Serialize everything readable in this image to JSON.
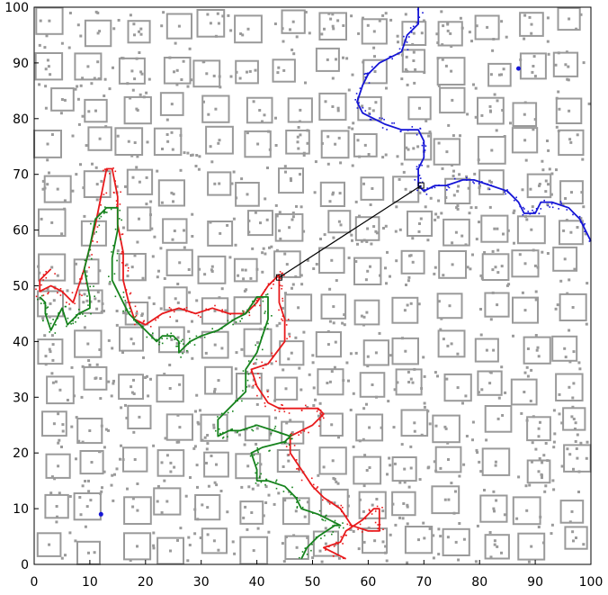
{
  "chart_data": {
    "type": "line",
    "title": "",
    "xlabel": "",
    "ylabel": "",
    "xlim": [
      0,
      100
    ],
    "ylim": [
      0,
      100
    ],
    "grid": false,
    "xticks": [
      0,
      10,
      20,
      30,
      40,
      50,
      60,
      70,
      80,
      90,
      100
    ],
    "yticks": [
      0,
      10,
      20,
      30,
      40,
      50,
      60,
      70,
      80,
      90,
      100
    ],
    "colors": {
      "red": "#e8191b",
      "green": "#15821c",
      "blue": "#1515d6",
      "link": "#000000",
      "obstacle": "#9a9a9a"
    },
    "series": [
      {
        "color": "red",
        "points": [
          [
            56,
            1
          ],
          [
            52,
            3
          ],
          [
            55,
            4
          ],
          [
            56,
            6
          ],
          [
            59,
            8
          ],
          [
            61,
            10
          ],
          [
            62,
            10
          ],
          [
            62,
            6
          ],
          [
            60,
            6
          ],
          [
            57,
            7
          ],
          [
            55,
            10
          ],
          [
            52,
            12
          ],
          [
            50,
            14
          ],
          [
            48,
            17
          ],
          [
            46,
            20
          ],
          [
            46,
            23
          ],
          [
            50,
            25
          ],
          [
            52,
            27
          ],
          [
            51,
            28
          ],
          [
            47,
            28
          ],
          [
            44,
            28
          ],
          [
            42,
            29
          ],
          [
            40,
            32
          ],
          [
            39,
            35
          ],
          [
            42,
            36
          ],
          [
            45,
            40
          ],
          [
            45,
            44
          ],
          [
            44,
            47
          ],
          [
            44,
            50
          ],
          [
            44,
            52
          ],
          [
            43,
            51
          ],
          [
            42,
            50
          ],
          [
            40,
            47
          ],
          [
            38,
            45
          ],
          [
            35,
            45
          ],
          [
            32,
            46
          ],
          [
            29,
            45
          ],
          [
            26,
            46
          ],
          [
            23,
            45
          ],
          [
            20,
            43
          ],
          [
            18,
            44
          ],
          [
            17,
            47
          ],
          [
            16,
            51
          ],
          [
            16,
            56
          ],
          [
            15,
            61
          ],
          [
            15,
            66
          ],
          [
            14,
            71
          ],
          [
            13,
            71
          ],
          [
            12,
            66
          ],
          [
            11,
            61
          ],
          [
            10,
            57
          ],
          [
            9,
            53
          ],
          [
            8,
            50
          ],
          [
            7,
            47
          ],
          [
            5,
            49
          ],
          [
            3,
            50
          ],
          [
            1,
            49
          ],
          [
            1,
            51
          ],
          [
            3,
            53
          ]
        ]
      },
      {
        "color": "green",
        "points": [
          [
            48,
            1
          ],
          [
            49,
            3
          ],
          [
            51,
            5
          ],
          [
            54,
            7
          ],
          [
            55,
            7
          ],
          [
            53,
            8
          ],
          [
            51,
            9
          ],
          [
            48,
            10
          ],
          [
            47,
            12
          ],
          [
            45,
            14
          ],
          [
            42,
            15
          ],
          [
            40,
            15
          ],
          [
            40,
            17
          ],
          [
            39,
            20
          ],
          [
            41,
            21
          ],
          [
            45,
            22
          ],
          [
            46,
            23
          ],
          [
            43,
            24
          ],
          [
            40,
            25
          ],
          [
            37,
            24
          ],
          [
            35,
            24
          ],
          [
            33,
            23
          ],
          [
            33,
            26
          ],
          [
            36,
            29
          ],
          [
            38,
            31
          ],
          [
            38,
            35
          ],
          [
            40,
            38
          ],
          [
            41,
            41
          ],
          [
            42,
            44
          ],
          [
            42,
            48
          ],
          [
            40,
            48
          ],
          [
            38,
            45
          ],
          [
            36,
            44
          ],
          [
            33,
            42
          ],
          [
            30,
            41
          ],
          [
            28,
            40
          ],
          [
            26,
            38
          ],
          [
            26,
            40
          ],
          [
            25,
            41
          ],
          [
            23,
            41
          ],
          [
            22,
            40
          ],
          [
            20,
            42
          ],
          [
            18,
            44
          ],
          [
            17,
            45
          ],
          [
            16,
            47
          ],
          [
            14,
            51
          ],
          [
            14,
            55
          ],
          [
            15,
            60
          ],
          [
            15,
            64
          ],
          [
            13,
            64
          ],
          [
            11,
            62
          ],
          [
            10,
            57
          ],
          [
            9,
            53
          ],
          [
            10,
            48
          ],
          [
            10,
            46
          ],
          [
            8,
            45
          ],
          [
            7,
            44
          ],
          [
            6,
            43
          ],
          [
            5,
            46
          ],
          [
            4,
            44
          ],
          [
            3,
            42
          ],
          [
            2,
            45
          ],
          [
            2,
            47
          ],
          [
            1,
            48
          ]
        ]
      },
      {
        "color": "blue",
        "points": [
          [
            69,
            100
          ],
          [
            69,
            97
          ],
          [
            67,
            95
          ],
          [
            66,
            92
          ],
          [
            62,
            90
          ],
          [
            60,
            88
          ],
          [
            59,
            86
          ],
          [
            58,
            83
          ],
          [
            59,
            81
          ],
          [
            61,
            80
          ],
          [
            63,
            79
          ],
          [
            66,
            78
          ],
          [
            69,
            78
          ],
          [
            70,
            76
          ],
          [
            70,
            73
          ],
          [
            69,
            71
          ],
          [
            69,
            68
          ],
          [
            70,
            67
          ],
          [
            72,
            68
          ],
          [
            74,
            68
          ],
          [
            77,
            69
          ],
          [
            79,
            69
          ],
          [
            82,
            68
          ],
          [
            85,
            67
          ],
          [
            87,
            65
          ],
          [
            88,
            63
          ],
          [
            90,
            63
          ],
          [
            91,
            65
          ],
          [
            93,
            65
          ],
          [
            96,
            64
          ],
          [
            98,
            62
          ],
          [
            100,
            58
          ]
        ]
      },
      {
        "color": "link",
        "points": [
          [
            44,
            51.5
          ],
          [
            69.5,
            68
          ]
        ]
      }
    ]
  }
}
